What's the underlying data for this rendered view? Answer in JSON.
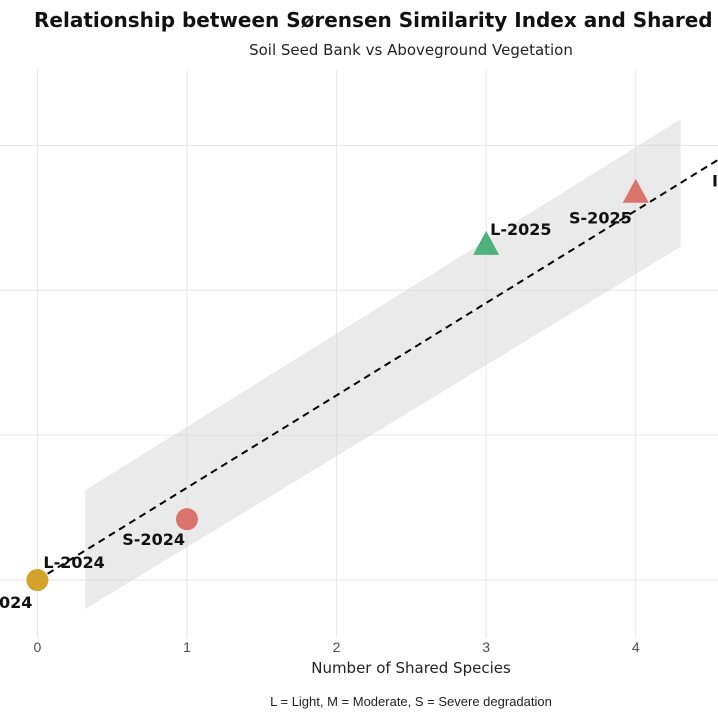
{
  "chart_data": {
    "type": "scatter",
    "title": "Relationship between Sørensen Similarity Index and Shared S",
    "subtitle": "Soil Seed Bank vs Aboveground Vegetation",
    "xlabel": "Number of Shared Species",
    "caption": "L = Light, M = Moderate, S = Severe degradation",
    "x_ticks": [
      "0",
      "1",
      "2",
      "3",
      "4"
    ],
    "xlim": [
      -0.25,
      4.55
    ],
    "y_gridlines": [
      0,
      0.25,
      0.5,
      0.75
    ],
    "ylim": [
      -0.1,
      0.88
    ],
    "grid": true,
    "points": [
      {
        "label": "L-2024",
        "x": 0,
        "y": 0,
        "shape": "circle",
        "color": "#D4A22B"
      },
      {
        "label": "S-2024",
        "x": 1,
        "y": 0.105,
        "shape": "circle",
        "color": "#D9736B"
      },
      {
        "label": "L-2025",
        "x": 3,
        "y": 0.58,
        "shape": "triangle",
        "color": "#4DB37A"
      },
      {
        "label": "S-2025",
        "x": 4,
        "y": 0.67,
        "shape": "triangle",
        "color": "#D9736B"
      }
    ],
    "clipped_labels": [
      {
        "text": "024",
        "x": 0,
        "y": 0
      },
      {
        "text": "I",
        "x": 4.55,
        "y": 0.72
      }
    ],
    "trend_line": {
      "x": [
        0,
        4.55
      ],
      "y": [
        0,
        0.725
      ],
      "style": "dashed"
    },
    "confidence_band": {
      "x": [
        0.32,
        4.3
      ],
      "upper": [
        0.155,
        0.795
      ],
      "lower": [
        -0.05,
        0.575
      ]
    }
  }
}
